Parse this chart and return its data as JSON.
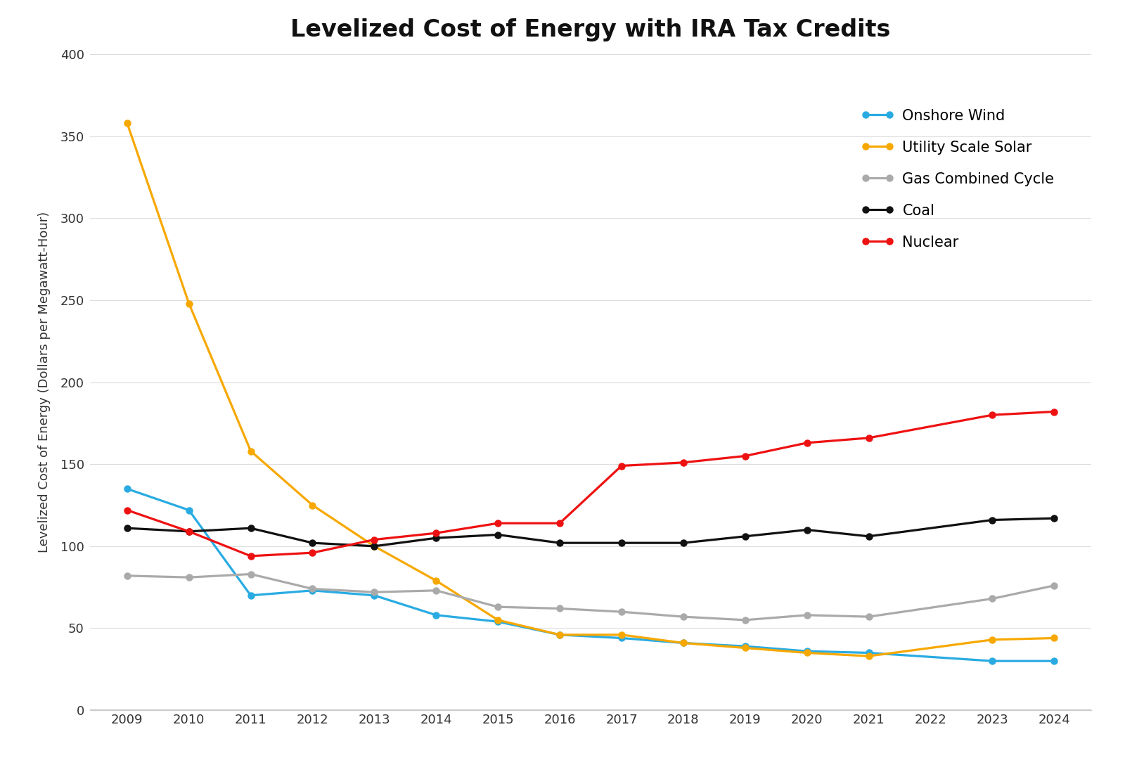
{
  "title": "Levelized Cost of Energy with IRA Tax Credits",
  "ylabel": "Levelized Cost of Energy (Dollars per Megawatt-Hour)",
  "years": [
    2009,
    2010,
    2011,
    2012,
    2013,
    2014,
    2015,
    2016,
    2017,
    2018,
    2019,
    2020,
    2021,
    2022,
    2023,
    2024
  ],
  "series": {
    "Onshore Wind": {
      "color": "#29ABE2",
      "values": [
        135,
        122,
        70,
        73,
        70,
        58,
        54,
        46,
        44,
        41,
        39,
        36,
        35,
        null,
        30,
        30
      ]
    },
    "Utility Scale Solar": {
      "color": "#F7A800",
      "values": [
        358,
        248,
        158,
        125,
        100,
        79,
        55,
        46,
        46,
        41,
        38,
        35,
        33,
        null,
        43,
        44
      ]
    },
    "Gas Combined Cycle": {
      "color": "#AAAAAA",
      "values": [
        82,
        81,
        83,
        74,
        72,
        73,
        63,
        62,
        60,
        57,
        55,
        58,
        57,
        null,
        68,
        76
      ]
    },
    "Coal": {
      "color": "#111111",
      "values": [
        111,
        109,
        111,
        102,
        100,
        105,
        107,
        102,
        102,
        102,
        106,
        110,
        106,
        null,
        116,
        117
      ]
    },
    "Nuclear": {
      "color": "#EE1111",
      "values": [
        122,
        109,
        94,
        96,
        104,
        108,
        114,
        114,
        149,
        151,
        155,
        163,
        166,
        null,
        180,
        182
      ]
    }
  },
  "ylim": [
    0,
    400
  ],
  "yticks": [
    0,
    50,
    100,
    150,
    200,
    250,
    300,
    350,
    400
  ],
  "background_color": "#FFFFFF",
  "title_fontsize": 24,
  "legend_fontsize": 15,
  "axis_fontsize": 13,
  "tick_fontsize": 13
}
